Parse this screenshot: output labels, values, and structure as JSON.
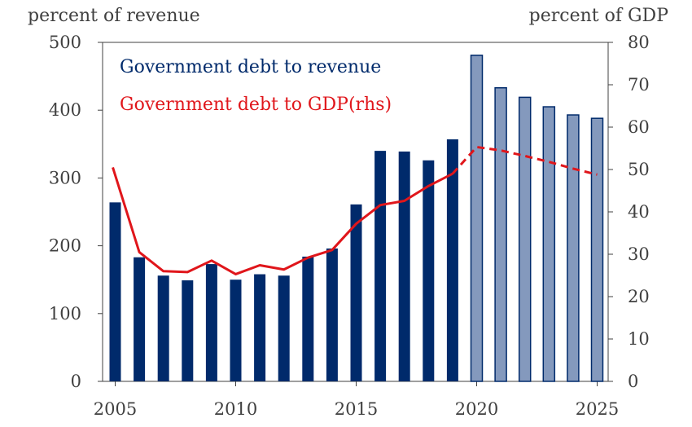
{
  "chart_data": {
    "type": "bar",
    "y_left_label": "percent of revenue",
    "y_right_label": "percent of GDP",
    "x_tick_labels": [
      "2005",
      "2010",
      "2015",
      "2020",
      "2025"
    ],
    "x_ticks": [
      2005,
      2010,
      2015,
      2020,
      2025
    ],
    "y_left_ticks": [
      "0",
      "100",
      "200",
      "300",
      "400",
      "500"
    ],
    "y_right_ticks": [
      "0",
      "10",
      "20",
      "30",
      "40",
      "50",
      "60",
      "70",
      "80"
    ],
    "ylim_left": [
      0,
      500
    ],
    "ylim_right": [
      0,
      80
    ],
    "xlim": [
      2005,
      2025.5
    ],
    "grid": false,
    "legend_position": "top-left",
    "colors": {
      "actual_bar": "#002a6b",
      "projected_bar": "#8499bd",
      "projected_bar_edge": "#002a6b",
      "line": "#e0161b",
      "legend_debt_revenue": "#002a6b",
      "legend_debt_gdp": "#e0161b"
    },
    "series": [
      {
        "name": "Government debt to revenue",
        "axis": "left",
        "x": [
          2005,
          2006,
          2007,
          2008,
          2009,
          2010,
          2011,
          2012,
          2013,
          2014,
          2015,
          2016,
          2017,
          2018,
          2019,
          2020,
          2021,
          2022,
          2023,
          2024,
          2025
        ],
        "values": [
          264,
          183,
          156,
          149,
          173,
          150,
          158,
          156,
          184,
          196,
          261,
          340,
          339,
          326,
          357,
          481,
          433,
          419,
          405,
          393,
          388
        ],
        "projected_from": 2020
      },
      {
        "name": "Government debt to GDP(rhs)",
        "axis": "right",
        "x": [
          2004.9,
          2006,
          2007,
          2008,
          2009,
          2010,
          2011,
          2012,
          2013,
          2014,
          2015,
          2016,
          2017,
          2018,
          2019,
          2020,
          2021,
          2022,
          2023,
          2024,
          2025
        ],
        "values": [
          50.5,
          30.5,
          26,
          25.8,
          28.5,
          25.3,
          27.4,
          26.4,
          29.2,
          31,
          37.2,
          41.6,
          42.6,
          46.1,
          49,
          55.3,
          54.5,
          53.2,
          51.8,
          50.2,
          48.8
        ],
        "projected_from": 2019
      }
    ]
  }
}
